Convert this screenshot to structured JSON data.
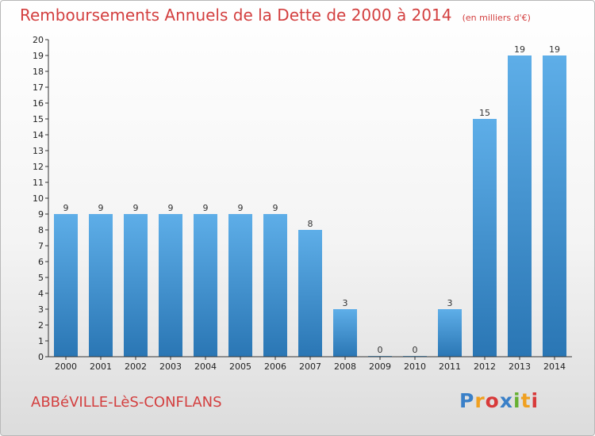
{
  "header": {
    "title": "Remboursements Annuels de la Dette de 2000 à 2014",
    "subtitle": "(en milliers d'€)"
  },
  "footer": {
    "town": "ABBéVILLE-LèS-CONFLANS",
    "logo": "Proxiti"
  },
  "colors": {
    "title": "#d33f3f",
    "bar_top": "#5eaee8",
    "bar_bottom": "#2a76b4",
    "axis": "#333333"
  },
  "chart_data": {
    "type": "bar",
    "categories": [
      "2000",
      "2001",
      "2002",
      "2003",
      "2004",
      "2005",
      "2006",
      "2007",
      "2008",
      "2009",
      "2010",
      "2011",
      "2012",
      "2013",
      "2014"
    ],
    "values": [
      9,
      9,
      9,
      9,
      9,
      9,
      9,
      8,
      3,
      0,
      0,
      3,
      15,
      19,
      19
    ],
    "ylim": [
      0,
      20
    ],
    "yticks": [
      0,
      1,
      2,
      3,
      4,
      5,
      6,
      7,
      8,
      9,
      10,
      11,
      12,
      13,
      14,
      15,
      16,
      17,
      18,
      19,
      20
    ],
    "grid": false,
    "data_labels": true
  }
}
